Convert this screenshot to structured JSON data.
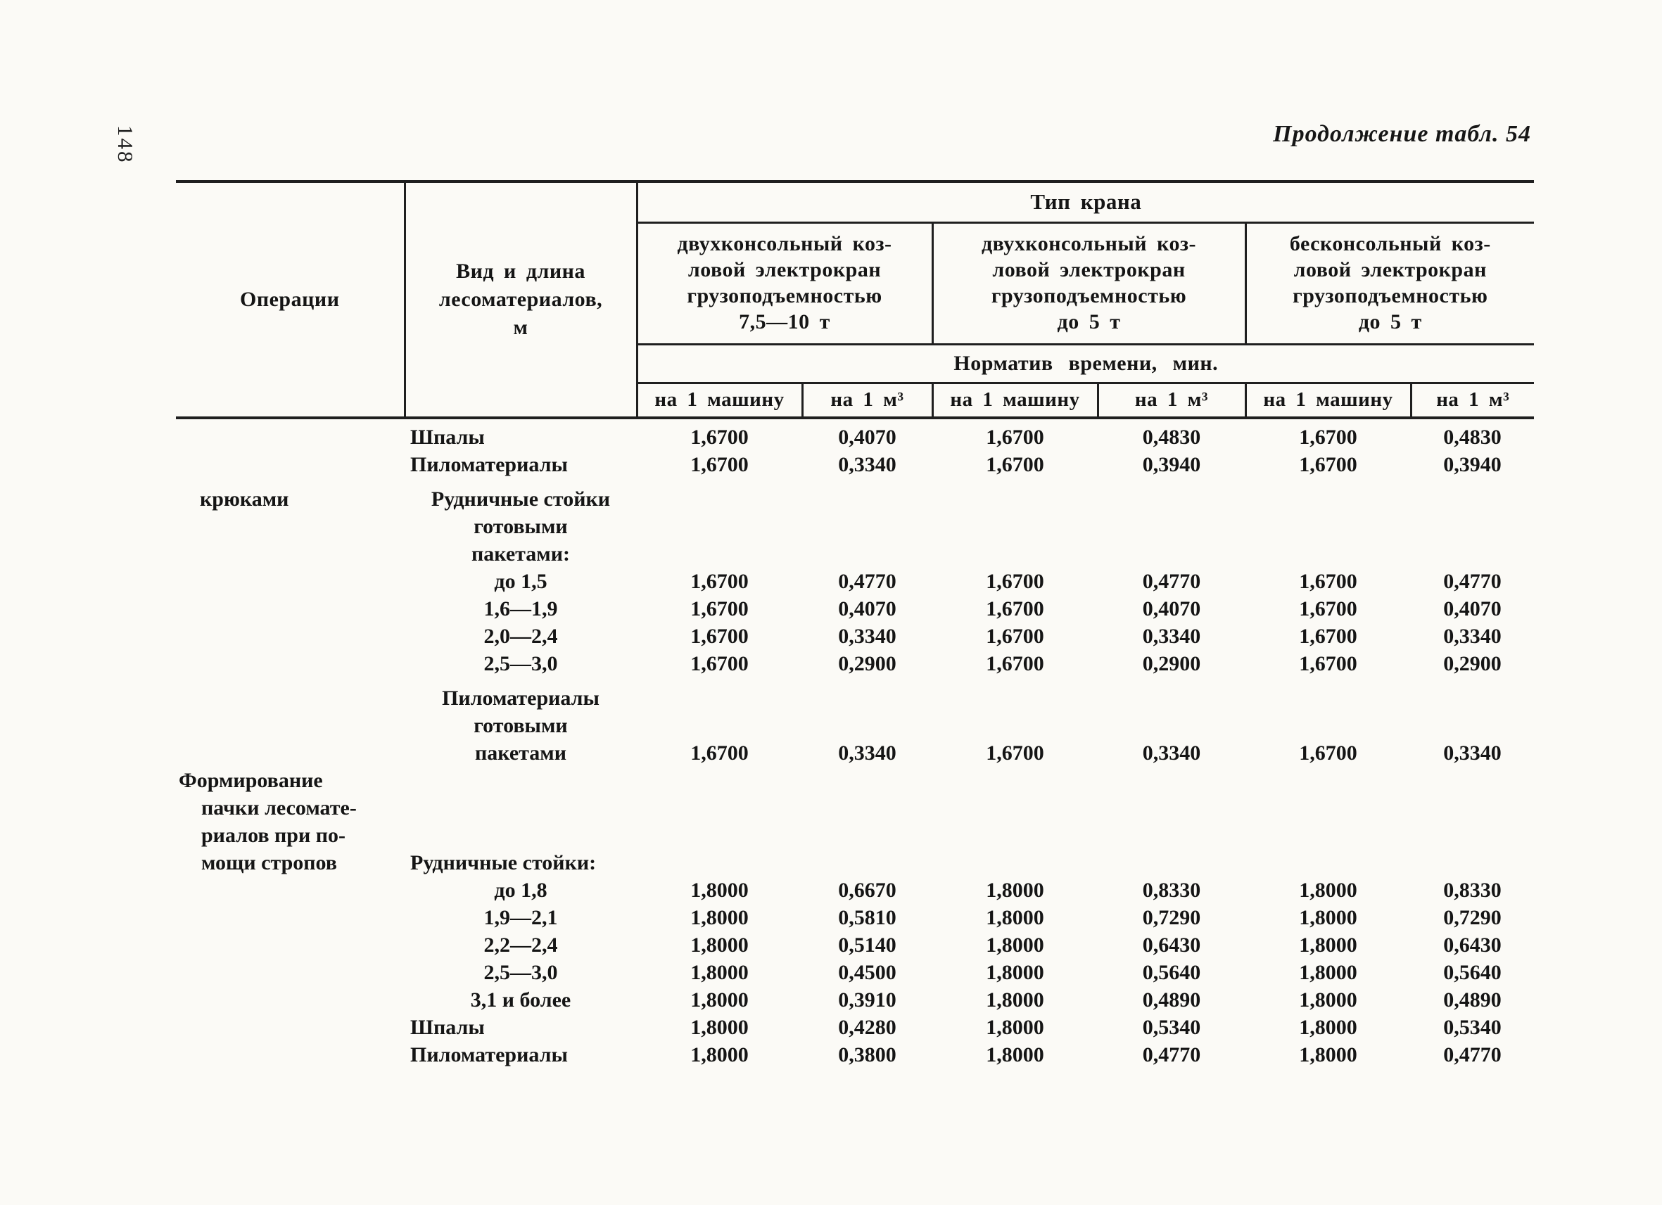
{
  "colors": {
    "paper": "#fbfaf6",
    "ink": "#1f1f1f"
  },
  "page": {
    "number": "148",
    "caption": "Продолжение табл. 54"
  },
  "table": {
    "header": {
      "operations": "Операции",
      "kind": "Вид и длина\nлесоматериалов,\nм",
      "crane_group": "Тип крана",
      "crane_types": [
        "двухконсольный коз-\nловой электрокран\nгрузоподъемностью\n7,5—10 т",
        "двухконсольный коз-\nловой электрокран\nгрузоподъемностью\nдо 5 т",
        "бесконсольный коз-\nловой электрокран\nгрузоподъемностью\nдо 5 т"
      ],
      "norm": "Норматив времени, мин.",
      "sub_columns": [
        "на 1 машину",
        "на 1 м³",
        "на 1 машину",
        "на 1 м³",
        "на 1 машину",
        "на 1 м³"
      ]
    },
    "rows": [
      {
        "op": "",
        "kind": "Шпалы",
        "align": "left",
        "values": [
          "1,6700",
          "0,4070",
          "1,6700",
          "0,4830",
          "1,6700",
          "0,4830"
        ]
      },
      {
        "op": "",
        "kind": "Пиломатериалы",
        "align": "left",
        "values": [
          "1,6700",
          "0,3340",
          "1,6700",
          "0,3940",
          "1,6700",
          "0,3940"
        ]
      },
      {
        "op": "крюками",
        "op_rows": 6,
        "gap": true,
        "kind": "Рудничные стойки\nготовыми\nпакетами:",
        "align": "center",
        "values": []
      },
      {
        "covered": true,
        "kind": "до 1,5",
        "align": "center",
        "values": [
          "1,6700",
          "0,4770",
          "1,6700",
          "0,4770",
          "1,6700",
          "0,4770"
        ]
      },
      {
        "covered": true,
        "kind": "1,6—1,9",
        "align": "center",
        "values": [
          "1,6700",
          "0,4070",
          "1,6700",
          "0,4070",
          "1,6700",
          "0,4070"
        ]
      },
      {
        "covered": true,
        "kind": "2,0—2,4",
        "align": "center",
        "values": [
          "1,6700",
          "0,3340",
          "1,6700",
          "0,3340",
          "1,6700",
          "0,3340"
        ]
      },
      {
        "covered": true,
        "kind": "2,5—3,0",
        "align": "center",
        "values": [
          "1,6700",
          "0,2900",
          "1,6700",
          "0,2900",
          "1,6700",
          "0,2900"
        ]
      },
      {
        "covered": true,
        "gap": true,
        "vbottom": true,
        "kind": "Пиломатериалы\nготовыми\nпакетами",
        "align": "center",
        "values": [
          "1,6700",
          "0,3340",
          "1,6700",
          "0,3340",
          "1,6700",
          "0,3340"
        ]
      },
      {
        "op": "Формирование\nпачки лесомате-\nриалов при по-\nмощи стропов",
        "op_rows": 8,
        "op_hang": true,
        "kind": "Рудничные стойки:",
        "align": "left",
        "kind_pad": true,
        "values": []
      },
      {
        "covered": true,
        "kind": "до 1,8",
        "align": "center",
        "values": [
          "1,8000",
          "0,6670",
          "1,8000",
          "0,8330",
          "1,8000",
          "0,8330"
        ]
      },
      {
        "covered": true,
        "kind": "1,9—2,1",
        "align": "center",
        "values": [
          "1,8000",
          "0,5810",
          "1,8000",
          "0,7290",
          "1,8000",
          "0,7290"
        ]
      },
      {
        "covered": true,
        "kind": "2,2—2,4",
        "align": "center",
        "values": [
          "1,8000",
          "0,5140",
          "1,8000",
          "0,6430",
          "1,8000",
          "0,6430"
        ]
      },
      {
        "covered": true,
        "kind": "2,5—3,0",
        "align": "center",
        "values": [
          "1,8000",
          "0,4500",
          "1,8000",
          "0,5640",
          "1,8000",
          "0,5640"
        ]
      },
      {
        "covered": true,
        "kind": "3,1 и более",
        "align": "center",
        "values": [
          "1,8000",
          "0,3910",
          "1,8000",
          "0,4890",
          "1,8000",
          "0,4890"
        ]
      },
      {
        "covered": true,
        "kind": "Шпалы",
        "align": "left",
        "values": [
          "1,8000",
          "0,4280",
          "1,8000",
          "0,5340",
          "1,8000",
          "0,5340"
        ]
      },
      {
        "covered": true,
        "kind": "Пиломатериалы",
        "align": "left",
        "values": [
          "1,8000",
          "0,3800",
          "1,8000",
          "0,4770",
          "1,8000",
          "0,4770"
        ]
      }
    ]
  }
}
